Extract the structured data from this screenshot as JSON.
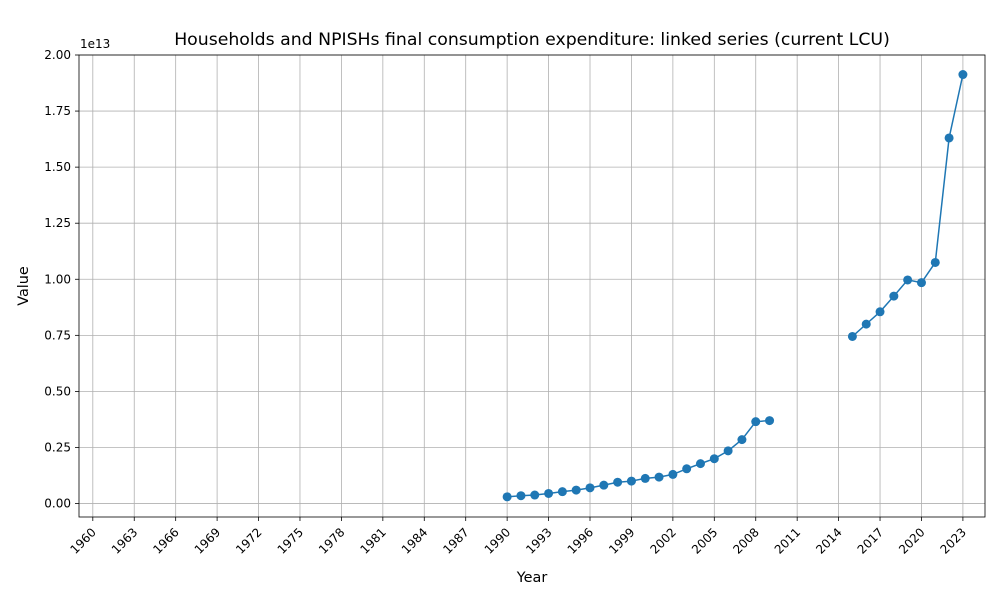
{
  "chart_data": {
    "type": "line",
    "title": "Households and NPISHs final consumption expenditure: linked series (current LCU)",
    "xlabel": "Year",
    "ylabel": "Value",
    "y_offset_label": "1e13",
    "xlim": [
      1959,
      2024.6
    ],
    "ylim": [
      -0.06,
      2.0
    ],
    "y_scale_factor": 10000000000000.0,
    "grid": true,
    "x_ticks": [
      1960,
      1963,
      1966,
      1969,
      1972,
      1975,
      1978,
      1981,
      1984,
      1987,
      1990,
      1993,
      1996,
      1999,
      2002,
      2005,
      2008,
      2011,
      2014,
      2017,
      2020,
      2023
    ],
    "x_tick_labels": [
      "1960",
      "1963",
      "1966",
      "1969",
      "1972",
      "1975",
      "1978",
      "1981",
      "1984",
      "1987",
      "1990",
      "1993",
      "1996",
      "1999",
      "2002",
      "2005",
      "2008",
      "2011",
      "2014",
      "2017",
      "2020",
      "2023"
    ],
    "y_ticks": [
      0,
      0.25,
      0.5,
      0.75,
      1.0,
      1.25,
      1.5,
      1.75,
      2.0
    ],
    "y_tick_labels": [
      "0.00",
      "0.25",
      "0.50",
      "0.75",
      "1.00",
      "1.25",
      "1.50",
      "1.75",
      "2.00"
    ],
    "series": [
      {
        "color": "#1f77b4",
        "marker": "circle",
        "x": [
          1990,
          1991,
          1992,
          1993,
          1994,
          1995,
          1996,
          1997,
          1998,
          1999,
          2000,
          2001,
          2002,
          2003,
          2004,
          2005,
          2006,
          2007,
          2008,
          2009,
          2010,
          2011,
          2012,
          2013,
          2014,
          2015,
          2016,
          2017,
          2018,
          2019,
          2020,
          2021,
          2022,
          2023
        ],
        "values": [
          0.03,
          0.035,
          0.038,
          0.045,
          0.053,
          0.06,
          0.07,
          0.082,
          0.095,
          0.1,
          0.112,
          0.118,
          0.13,
          0.155,
          0.178,
          0.2,
          0.235,
          0.285,
          0.365,
          0.37,
          null,
          null,
          null,
          null,
          null,
          0.745,
          0.8,
          0.855,
          0.925,
          0.997,
          0.985,
          1.075,
          1.63,
          1.913
        ]
      }
    ]
  }
}
